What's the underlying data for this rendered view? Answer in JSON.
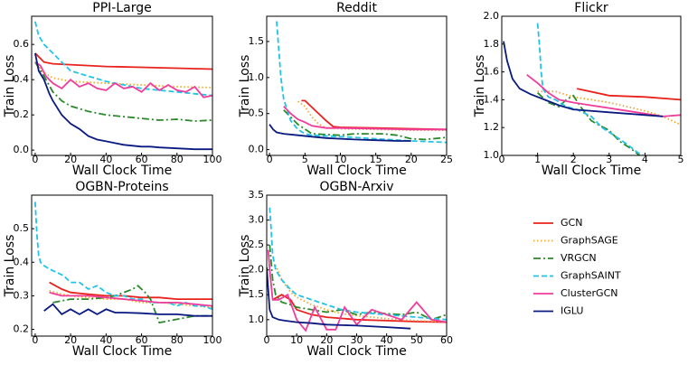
{
  "chart_data": [
    {
      "type": "line",
      "title": "PPI-Large",
      "xlabel": "Wall Clock Time",
      "ylabel": "Train Loss",
      "xlim": [
        -2,
        100
      ],
      "ylim": [
        -0.03,
        0.76
      ],
      "xticks": [
        0,
        20,
        40,
        60,
        80,
        100
      ],
      "yticks": [
        {
          "value": 0,
          "label": "0.0"
        },
        0.2,
        0.4,
        0.6
      ],
      "series": [
        {
          "x": [
            0,
            5,
            10,
            20,
            40,
            60,
            80,
            100
          ],
          "values": [
            0.55,
            0.5,
            0.49,
            0.485,
            0.475,
            0.47,
            0.465,
            0.46
          ]
        },
        {
          "x": [
            0,
            5,
            10,
            20,
            40,
            60,
            80,
            100
          ],
          "values": [
            0.5,
            0.44,
            0.41,
            0.39,
            0.38,
            0.37,
            0.36,
            0.355
          ]
        },
        {
          "x": [
            0,
            5,
            10,
            15,
            20,
            30,
            40,
            50,
            60,
            70,
            80,
            90,
            100
          ],
          "values": [
            0.5,
            0.42,
            0.33,
            0.28,
            0.25,
            0.22,
            0.2,
            0.19,
            0.18,
            0.17,
            0.175,
            0.165,
            0.17
          ]
        },
        {
          "x": [
            0,
            2,
            5,
            10,
            15,
            20,
            30,
            40,
            50,
            60,
            70,
            80,
            90,
            100
          ],
          "values": [
            0.73,
            0.65,
            0.6,
            0.55,
            0.5,
            0.45,
            0.42,
            0.39,
            0.37,
            0.35,
            0.34,
            0.33,
            0.32,
            0.31
          ]
        },
        {
          "x": [
            0,
            3,
            6,
            10,
            15,
            20,
            25,
            30,
            35,
            40,
            45,
            50,
            55,
            60,
            65,
            70,
            75,
            80,
            85,
            90,
            95,
            100
          ],
          "values": [
            0.5,
            0.48,
            0.42,
            0.38,
            0.35,
            0.4,
            0.36,
            0.38,
            0.35,
            0.34,
            0.38,
            0.35,
            0.36,
            0.33,
            0.38,
            0.34,
            0.37,
            0.34,
            0.33,
            0.36,
            0.3,
            0.31
          ]
        },
        {
          "x": [
            0,
            2,
            5,
            8,
            10,
            15,
            20,
            25,
            30,
            35,
            40,
            45,
            50,
            55,
            60,
            65,
            70,
            80,
            90,
            100
          ],
          "values": [
            0.55,
            0.45,
            0.4,
            0.32,
            0.28,
            0.2,
            0.15,
            0.12,
            0.08,
            0.06,
            0.05,
            0.04,
            0.03,
            0.025,
            0.02,
            0.02,
            0.015,
            0.01,
            0.005,
            0.005
          ]
        }
      ]
    },
    {
      "type": "line",
      "title": "Reddit",
      "xlabel": "Wall Clock Time",
      "ylabel": "Train Loss",
      "xlim": [
        -0.4,
        25
      ],
      "ylim": [
        -0.08,
        1.85
      ],
      "xticks": [
        0,
        5,
        10,
        15,
        20,
        25
      ],
      "yticks": [
        {
          "value": 0,
          "label": "0.0"
        },
        0.5,
        {
          "value": 1,
          "label": "1.0"
        },
        1.5
      ],
      "series": [
        {
          "x": [
            4.5,
            5,
            8,
            9,
            10,
            15,
            20,
            25
          ],
          "values": [
            0.68,
            0.68,
            0.4,
            0.32,
            0.31,
            0.3,
            0.29,
            0.28
          ]
        },
        {
          "x": [
            4,
            5,
            6,
            7,
            8,
            10,
            15,
            20,
            25
          ],
          "values": [
            0.67,
            0.6,
            0.45,
            0.35,
            0.3,
            0.29,
            0.28,
            0.27,
            0.27
          ]
        },
        {
          "x": [
            2,
            4,
            6,
            8,
            10,
            12,
            14,
            16,
            18,
            20,
            22,
            25
          ],
          "values": [
            0.55,
            0.35,
            0.22,
            0.21,
            0.2,
            0.22,
            0.22,
            0.22,
            0.2,
            0.15,
            0.14,
            0.17
          ]
        },
        {
          "x": [
            1,
            1.3,
            1.6,
            2,
            3,
            4,
            5,
            6,
            8,
            10,
            12,
            15,
            20,
            25
          ],
          "values": [
            1.78,
            1.4,
            1.0,
            0.7,
            0.4,
            0.28,
            0.22,
            0.2,
            0.19,
            0.18,
            0.17,
            0.15,
            0.12,
            0.1
          ]
        },
        {
          "x": [
            2,
            3,
            4,
            5,
            6,
            8,
            10,
            15,
            20,
            25
          ],
          "values": [
            0.6,
            0.5,
            0.42,
            0.38,
            0.33,
            0.3,
            0.3,
            0.29,
            0.28,
            0.28
          ]
        },
        {
          "x": [
            0,
            0.5,
            1,
            2,
            4,
            6,
            8,
            10,
            12,
            15,
            18,
            20
          ],
          "values": [
            0.35,
            0.28,
            0.24,
            0.22,
            0.2,
            0.18,
            0.16,
            0.15,
            0.14,
            0.13,
            0.12,
            0.12
          ]
        }
      ]
    },
    {
      "type": "line",
      "title": "Flickr",
      "xlabel": "Wall Clock Time",
      "ylabel": "Train Loss",
      "xlim": [
        0,
        5
      ],
      "ylim": [
        1,
        2
      ],
      "xticks": [
        0,
        1,
        2,
        3,
        4,
        5
      ],
      "yticks": [
        {
          "value": 1,
          "label": "1.0"
        },
        1.2,
        1.4,
        1.6,
        1.8,
        {
          "value": 2,
          "label": "2.0"
        }
      ],
      "series": [
        {
          "x": [
            2.1,
            3,
            4,
            5
          ],
          "values": [
            1.48,
            1.43,
            1.42,
            1.4
          ]
        },
        {
          "x": [
            1,
            1.5,
            2,
            2.5,
            3,
            3.5,
            4,
            4.5,
            5
          ],
          "values": [
            1.46,
            1.46,
            1.42,
            1.4,
            1.38,
            1.35,
            1.32,
            1.28,
            1.22
          ]
        },
        {
          "x": [
            1,
            1.3,
            1.6,
            1.8,
            2,
            2.2,
            2.5,
            2.7,
            3,
            3.3,
            3.6,
            3.9
          ],
          "values": [
            1.45,
            1.38,
            1.35,
            1.4,
            1.43,
            1.35,
            1.25,
            1.22,
            1.18,
            1.1,
            1.05,
            0.99
          ]
        },
        {
          "x": [
            1,
            1.05,
            1.1,
            1.15,
            1.3,
            1.5,
            1.8,
            2.1,
            2.5,
            2.8,
            3.1,
            3.5,
            3.8,
            4
          ],
          "values": [
            1.95,
            1.8,
            1.6,
            1.48,
            1.42,
            1.4,
            1.35,
            1.33,
            1.28,
            1.2,
            1.15,
            1.08,
            1.02,
            0.99
          ]
        },
        {
          "x": [
            0.7,
            1,
            1.3,
            1.6,
            2,
            2.5,
            3,
            3.5,
            4,
            4.5,
            5
          ],
          "values": [
            1.58,
            1.52,
            1.45,
            1.4,
            1.38,
            1.36,
            1.34,
            1.32,
            1.3,
            1.28,
            1.29
          ]
        },
        {
          "x": [
            0.05,
            0.15,
            0.3,
            0.5,
            0.8,
            1.2,
            1.6,
            2,
            3,
            4,
            4.5
          ],
          "values": [
            1.82,
            1.68,
            1.55,
            1.48,
            1.44,
            1.4,
            1.36,
            1.33,
            1.31,
            1.29,
            1.28
          ]
        }
      ]
    },
    {
      "type": "line",
      "title": "OGBN-Proteins",
      "xlabel": "Wall Clock Time",
      "ylabel": "Train Loss",
      "xlim": [
        -2,
        100
      ],
      "ylim": [
        0.18,
        0.6
      ],
      "xticks": [
        0,
        20,
        40,
        60,
        80,
        100
      ],
      "yticks": [
        0.2,
        0.3,
        0.4,
        0.5
      ],
      "series": [
        {
          "x": [
            8,
            15,
            20,
            30,
            40,
            50,
            60,
            70,
            80,
            90,
            100
          ],
          "values": [
            0.34,
            0.32,
            0.31,
            0.305,
            0.3,
            0.3,
            0.295,
            0.295,
            0.29,
            0.29,
            0.29
          ]
        },
        {
          "x": [
            8,
            15,
            20,
            30,
            40,
            50,
            60,
            70,
            80,
            90,
            100
          ],
          "values": [
            0.315,
            0.305,
            0.3,
            0.295,
            0.29,
            0.29,
            0.28,
            0.28,
            0.275,
            0.27,
            0.265
          ]
        },
        {
          "x": [
            10,
            20,
            30,
            40,
            45,
            50,
            55,
            58,
            62,
            65,
            70,
            80,
            90,
            100
          ],
          "values": [
            0.28,
            0.29,
            0.29,
            0.295,
            0.3,
            0.31,
            0.32,
            0.33,
            0.31,
            0.29,
            0.22,
            0.23,
            0.24,
            0.24
          ]
        },
        {
          "x": [
            0,
            1,
            2,
            3,
            5,
            8,
            12,
            16,
            20,
            25,
            30,
            35,
            40,
            45,
            50,
            55,
            60,
            65,
            70,
            75,
            80,
            85,
            90,
            95,
            100
          ],
          "values": [
            0.58,
            0.48,
            0.42,
            0.4,
            0.39,
            0.38,
            0.37,
            0.36,
            0.34,
            0.34,
            0.32,
            0.33,
            0.31,
            0.3,
            0.3,
            0.29,
            0.29,
            0.28,
            0.28,
            0.28,
            0.27,
            0.28,
            0.27,
            0.27,
            0.26
          ]
        },
        {
          "x": [
            8,
            15,
            20,
            30,
            40,
            50,
            60,
            70,
            80,
            90,
            100
          ],
          "values": [
            0.31,
            0.3,
            0.3,
            0.3,
            0.295,
            0.29,
            0.285,
            0.28,
            0.28,
            0.275,
            0.27
          ]
        },
        {
          "x": [
            5,
            10,
            15,
            20,
            25,
            30,
            35,
            40,
            45,
            50,
            60,
            70,
            80,
            90,
            100
          ],
          "values": [
            0.255,
            0.275,
            0.245,
            0.26,
            0.245,
            0.26,
            0.245,
            0.26,
            0.25,
            0.25,
            0.248,
            0.245,
            0.245,
            0.24,
            0.24
          ]
        }
      ]
    },
    {
      "type": "line",
      "title": "OGBN-Arxiv",
      "xlabel": "Wall Clock Time",
      "ylabel": "Train Loss",
      "xlim": [
        0,
        60
      ],
      "ylim": [
        0.67,
        3.5
      ],
      "xticks": [
        0,
        10,
        20,
        30,
        40,
        50,
        60
      ],
      "yticks": [
        {
          "value": 1,
          "label": "1.0"
        },
        1.5,
        {
          "value": 2,
          "label": "2.0"
        },
        2.5,
        {
          "value": 3,
          "label": "3.0"
        },
        3.5
      ],
      "series": [
        {
          "x": [
            2,
            5,
            8,
            10,
            15,
            20,
            30,
            40,
            50,
            60
          ],
          "values": [
            1.4,
            1.5,
            1.4,
            1.2,
            1.1,
            1.05,
            1.0,
            0.98,
            0.96,
            0.95
          ]
        },
        {
          "x": [
            3,
            5,
            8,
            10,
            15,
            20,
            25,
            30,
            40,
            50,
            60
          ],
          "values": [
            2.1,
            1.8,
            1.55,
            1.45,
            1.3,
            1.2,
            1.12,
            1.08,
            1.02,
            0.98,
            0.95
          ]
        },
        {
          "x": [
            1,
            2,
            3,
            5,
            8,
            10,
            15,
            20,
            25,
            30,
            35,
            40,
            45,
            50,
            55,
            60
          ],
          "values": [
            2.5,
            1.8,
            1.5,
            1.35,
            1.3,
            1.25,
            1.2,
            1.15,
            1.2,
            1.1,
            1.15,
            1.12,
            1.1,
            1.15,
            1.0,
            1.1
          ]
        },
        {
          "x": [
            1,
            1.5,
            2,
            3,
            5,
            8,
            10,
            15,
            20,
            25,
            30,
            40,
            50,
            60
          ],
          "values": [
            3.25,
            2.8,
            2.3,
            2.0,
            1.8,
            1.6,
            1.5,
            1.4,
            1.3,
            1.2,
            1.15,
            1.1,
            1.05,
            1.0
          ]
        },
        {
          "x": [
            0.5,
            1,
            2,
            4,
            7,
            10,
            13,
            16,
            20,
            23,
            26,
            30,
            35,
            40,
            45,
            50,
            55,
            60
          ],
          "values": [
            2.4,
            2.0,
            1.4,
            1.4,
            1.5,
            1.0,
            0.78,
            1.25,
            0.8,
            0.8,
            1.25,
            0.9,
            1.2,
            1.1,
            1.0,
            1.35,
            1.0,
            0.95
          ]
        },
        {
          "x": [
            0,
            0.5,
            1,
            2,
            4,
            6,
            10,
            15,
            20,
            30,
            40,
            48
          ],
          "values": [
            2.05,
            1.6,
            1.2,
            1.05,
            1.0,
            0.98,
            0.95,
            0.93,
            0.9,
            0.88,
            0.85,
            0.82
          ]
        }
      ]
    }
  ],
  "legend": [
    {
      "name": "GCN",
      "color": "#e8221c",
      "dash": "none"
    },
    {
      "name": "GraphSAGE",
      "color": "#f0a830",
      "dash": "1.5,2.5"
    },
    {
      "name": "VRGCN",
      "color": "#2a8a2a",
      "dash": "8,3,2,3"
    },
    {
      "name": "GraphSAINT",
      "color": "#22c3e8",
      "dash": "6,3"
    },
    {
      "name": "ClusterGCN",
      "color": "#f03c9c",
      "dash": "none"
    },
    {
      "name": "IGLU",
      "color": "#0a1a80",
      "dash": "none"
    }
  ]
}
